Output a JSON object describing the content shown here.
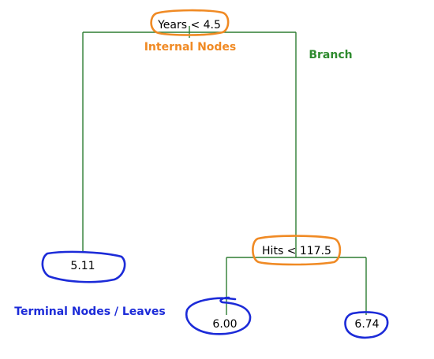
{
  "tree": {
    "root": {
      "label": "Years < 4.5"
    },
    "internal": {
      "label": "Hits < 117.5"
    },
    "leaves": [
      {
        "label": "5.11"
      },
      {
        "label": "6.00"
      },
      {
        "label": "6.74"
      }
    ]
  },
  "annotations": {
    "internal_nodes": "Internal Nodes",
    "branch": "Branch",
    "terminal_nodes": "Terminal Nodes / Leaves"
  },
  "colors": {
    "branch_line": "#2e7d32",
    "internal_outline": "#f08a24",
    "leaf_outline": "#1c2bd8",
    "internal_text": "#f08a24",
    "branch_text": "#2e8b2e",
    "terminal_text": "#1c2bd8"
  }
}
